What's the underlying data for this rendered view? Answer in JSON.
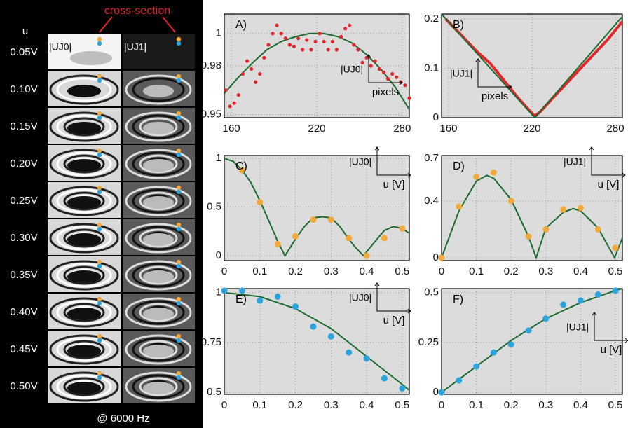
{
  "panel": {
    "u_label": "u",
    "cross_section": "cross-section",
    "col0": "|UJ0|",
    "col1": "|UJ1|",
    "footer": "@ 6000 Hz",
    "voltages": [
      "0.05V",
      "0.10V",
      "0.15V",
      "0.20V",
      "0.25V",
      "0.30V",
      "0.35V",
      "0.40V",
      "0.45V",
      "0.50V"
    ]
  },
  "chart_data": [
    {
      "type": "scatter",
      "label": "A)",
      "annotation": "|UJ0|",
      "axis_note": "pixels",
      "xlim": [
        155,
        285
      ],
      "ylim": [
        0.948,
        1.012
      ],
      "xticks": [
        160,
        220,
        280
      ],
      "yticks": [
        0.95,
        0.98,
        1
      ],
      "grid": true,
      "series": [
        {
          "mode": "markers",
          "color": "#e3262b",
          "x": [
            156,
            159,
            162,
            165,
            168,
            171,
            174,
            177,
            180,
            183,
            186,
            189,
            192,
            195,
            198,
            201,
            204,
            207,
            210,
            213,
            216,
            219,
            222,
            225,
            228,
            231,
            234,
            237,
            240,
            243,
            246,
            249,
            252,
            255,
            258,
            261,
            264,
            267,
            270,
            273,
            276,
            279,
            282,
            285
          ],
          "values": [
            0.965,
            0.955,
            0.957,
            0.962,
            0.975,
            0.983,
            0.978,
            0.97,
            0.975,
            0.985,
            0.993,
            1.0,
            1.005,
            1.0,
            0.997,
            0.993,
            0.992,
            0.997,
            0.99,
            0.996,
            0.99,
            0.995,
            1.0,
            0.995,
            0.99,
            0.995,
            0.99,
            0.998,
            1.003,
            1.005,
            0.993,
            0.99,
            0.982,
            0.985,
            0.98,
            0.983,
            0.978,
            0.976,
            0.972,
            0.975,
            0.973,
            0.97,
            0.968,
            0.96
          ]
        },
        {
          "mode": "line",
          "color": "#1d6b31",
          "x": [
            155,
            165,
            175,
            185,
            195,
            205,
            215,
            225,
            235,
            245,
            255,
            265,
            275,
            285
          ],
          "values": [
            0.963,
            0.973,
            0.982,
            0.99,
            0.995,
            0.998,
            1.0,
            1.0,
            0.998,
            0.994,
            0.987,
            0.978,
            0.967,
            0.953
          ]
        }
      ]
    },
    {
      "type": "scatter",
      "label": "B)",
      "annotation": "|UJ1|",
      "axis_note": "pixels",
      "xlim": [
        155,
        285
      ],
      "ylim": [
        0,
        0.21
      ],
      "xticks": [
        160,
        220,
        280
      ],
      "yticks": [
        0,
        0.1,
        0.2
      ],
      "grid": true,
      "series": [
        {
          "mode": "line",
          "color": "#e3262b",
          "width": 4,
          "x": [
            158,
            170,
            180,
            190,
            200,
            210,
            218,
            222,
            226,
            235,
            245,
            255,
            265,
            275,
            285
          ],
          "values": [
            0.2,
            0.165,
            0.135,
            0.11,
            0.075,
            0.04,
            0.015,
            0.003,
            0.012,
            0.04,
            0.07,
            0.1,
            0.13,
            0.16,
            0.195
          ]
        },
        {
          "mode": "line",
          "color": "#1d6b31",
          "x": [
            155,
            222,
            285
          ],
          "values": [
            0.21,
            0,
            0.205
          ]
        }
      ]
    },
    {
      "type": "scatter",
      "label": "C)",
      "annotation": "|UJ0|",
      "axis_note": "u [V]",
      "xlim": [
        0,
        0.52
      ],
      "ylim": [
        -0.05,
        1.03
      ],
      "xticks": [
        0,
        0.1,
        0.2,
        0.3,
        0.4,
        0.5
      ],
      "yticks": [
        0,
        0.5,
        1
      ],
      "grid": true,
      "series": [
        {
          "mode": "line",
          "color": "#1d6b31",
          "x": [
            0,
            0.025,
            0.05,
            0.075,
            0.1,
            0.125,
            0.15,
            0.1706,
            0.2,
            0.225,
            0.25,
            0.275,
            0.3,
            0.325,
            0.35,
            0.37,
            0.391,
            0.42,
            0.45,
            0.475,
            0.5,
            0.52
          ],
          "values": [
            1,
            0.97,
            0.88,
            0.75,
            0.567,
            0.36,
            0.148,
            0,
            0.17,
            0.3,
            0.39,
            0.4,
            0.39,
            0.3,
            0.17,
            0.08,
            0,
            0.13,
            0.26,
            0.3,
            0.28,
            0.23
          ]
        },
        {
          "mode": "markers",
          "color": "#f2a93b",
          "x": [
            0.05,
            0.1,
            0.15,
            0.2,
            0.25,
            0.3,
            0.35,
            0.4,
            0.45,
            0.5
          ],
          "values": [
            0.88,
            0.55,
            0.12,
            0.2,
            0.37,
            0.37,
            0.18,
            0,
            0.18,
            0.28
          ]
        }
      ]
    },
    {
      "type": "scatter",
      "label": "D)",
      "annotation": "|UJ1|",
      "axis_note": "u [V]",
      "xlim": [
        0,
        0.52
      ],
      "ylim": [
        -0.02,
        0.72
      ],
      "xticks": [
        0,
        0.1,
        0.2,
        0.3,
        0.4,
        0.5
      ],
      "yticks": [
        0,
        0.4,
        0.7
      ],
      "grid": true,
      "series": [
        {
          "mode": "line",
          "color": "#1d6b31",
          "x": [
            0,
            0.05,
            0.1,
            0.13,
            0.15,
            0.2,
            0.25,
            0.272,
            0.3,
            0.35,
            0.378,
            0.4,
            0.45,
            0.4976,
            0.52
          ],
          "values": [
            0,
            0.33,
            0.54,
            0.58,
            0.56,
            0.41,
            0.15,
            0,
            0.21,
            0.32,
            0.346,
            0.33,
            0.21,
            0,
            0.14
          ]
        },
        {
          "mode": "markers",
          "color": "#f2a93b",
          "x": [
            0,
            0.05,
            0.1,
            0.15,
            0.2,
            0.25,
            0.3,
            0.35,
            0.4,
            0.45,
            0.5
          ],
          "values": [
            0,
            0.36,
            0.57,
            0.6,
            0.4,
            0.15,
            0.2,
            0.34,
            0.35,
            0.2,
            0.07
          ]
        }
      ]
    },
    {
      "type": "scatter",
      "label": "E)",
      "annotation": "|UJ0|",
      "axis_note": "u [V]",
      "xlim": [
        0,
        0.52
      ],
      "ylim": [
        0.49,
        1.02
      ],
      "xticks": [
        0,
        0.1,
        0.2,
        0.3,
        0.4,
        0.5
      ],
      "yticks": [
        0.5,
        0.75,
        1
      ],
      "grid": true,
      "series": [
        {
          "mode": "line",
          "color": "#1d6b31",
          "x": [
            0,
            0.1,
            0.2,
            0.3,
            0.4,
            0.5,
            0.52
          ],
          "values": [
            1,
            0.98,
            0.92,
            0.82,
            0.68,
            0.54,
            0.51
          ]
        },
        {
          "mode": "markers",
          "color": "#2ba3dc",
          "x": [
            0,
            0.05,
            0.1,
            0.15,
            0.2,
            0.25,
            0.3,
            0.35,
            0.4,
            0.45,
            0.5
          ],
          "values": [
            1.01,
            1.01,
            0.96,
            0.98,
            0.93,
            0.83,
            0.78,
            0.7,
            0.67,
            0.57,
            0.52
          ]
        }
      ]
    },
    {
      "type": "scatter",
      "label": "F)",
      "annotation": "|UJ1|",
      "axis_note": "u [V]",
      "xlim": [
        0,
        0.52
      ],
      "ylim": [
        -0.01,
        0.52
      ],
      "xticks": [
        0,
        0.1,
        0.2,
        0.3,
        0.4,
        0.5
      ],
      "yticks": [
        0,
        0.25,
        0.5
      ],
      "grid": true,
      "series": [
        {
          "mode": "line",
          "color": "#1d6b31",
          "x": [
            0,
            0.1,
            0.2,
            0.3,
            0.4,
            0.5,
            0.52
          ],
          "values": [
            0,
            0.13,
            0.26,
            0.37,
            0.45,
            0.51,
            0.52
          ]
        },
        {
          "mode": "markers",
          "color": "#2ba3dc",
          "x": [
            0,
            0.05,
            0.1,
            0.15,
            0.2,
            0.25,
            0.3,
            0.35,
            0.4,
            0.45,
            0.5
          ],
          "values": [
            0,
            0.06,
            0.13,
            0.2,
            0.24,
            0.31,
            0.37,
            0.44,
            0.46,
            0.49,
            0.51
          ]
        }
      ]
    }
  ]
}
